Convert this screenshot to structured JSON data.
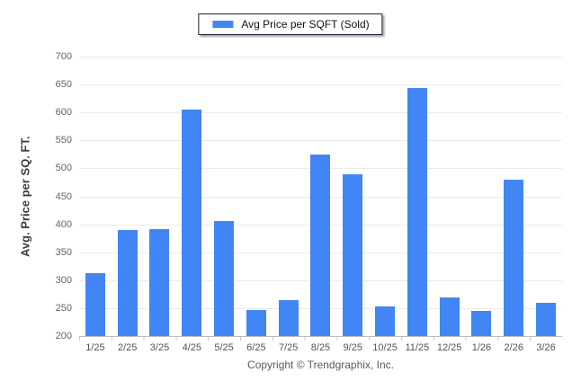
{
  "legend": {
    "label": "Avg Price per SQFT (Sold)",
    "swatch_color": "#4285f4"
  },
  "y_axis": {
    "title": "Avg. Price per SQ. FT.",
    "ticks": [
      700,
      650,
      600,
      550,
      500,
      450,
      400,
      350,
      300,
      250,
      200
    ]
  },
  "footer": {
    "copyright": "Copyright © Trendgraphix, Inc."
  },
  "colors": {
    "bar": "#4285f4",
    "gridline": "#ebebeb",
    "axis_line": "#bdbdbd",
    "tick_text": "#646464",
    "legend_border": "#1f2237"
  },
  "chart_data": {
    "type": "bar",
    "title": "Avg Price per SQFT (Sold)",
    "categories": [
      "1/25",
      "2/25",
      "3/25",
      "4/25",
      "5/25",
      "6/25",
      "7/25",
      "8/25",
      "9/25",
      "10/25",
      "11/25",
      "12/25",
      "1/26",
      "2/26",
      "3/26"
    ],
    "values": [
      313,
      390,
      392,
      605,
      406,
      246,
      264,
      525,
      489,
      253,
      643,
      269,
      245,
      480,
      259
    ],
    "xlabel": "",
    "ylabel": "Avg. Price per SQ. FT.",
    "ylim": [
      200,
      700
    ],
    "ytick_step": 50,
    "grid": true,
    "legend_position": "top-center",
    "bar_color": "#4285f4"
  }
}
